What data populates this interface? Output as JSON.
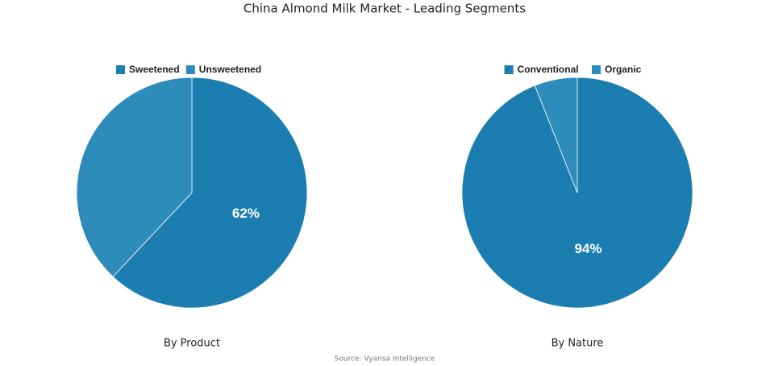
{
  "title": "China Almond Milk Market - Leading Segments",
  "source": "Source: Vyansa Intelligence",
  "chart_data": [
    {
      "type": "pie",
      "title": "By Product",
      "categories": [
        "Sweetened",
        "Unsweetened"
      ],
      "values": [
        62,
        38
      ],
      "value_labels": [
        "62%",
        null
      ],
      "colors": [
        "#1c7eb0",
        "#2e8cbb"
      ]
    },
    {
      "type": "pie",
      "title": "By Nature",
      "categories": [
        "Conventional",
        "Organic"
      ],
      "values": [
        94,
        6
      ],
      "value_labels": [
        "94%",
        null
      ],
      "colors": [
        "#1c7eb0",
        "#2e8cbb"
      ]
    }
  ]
}
